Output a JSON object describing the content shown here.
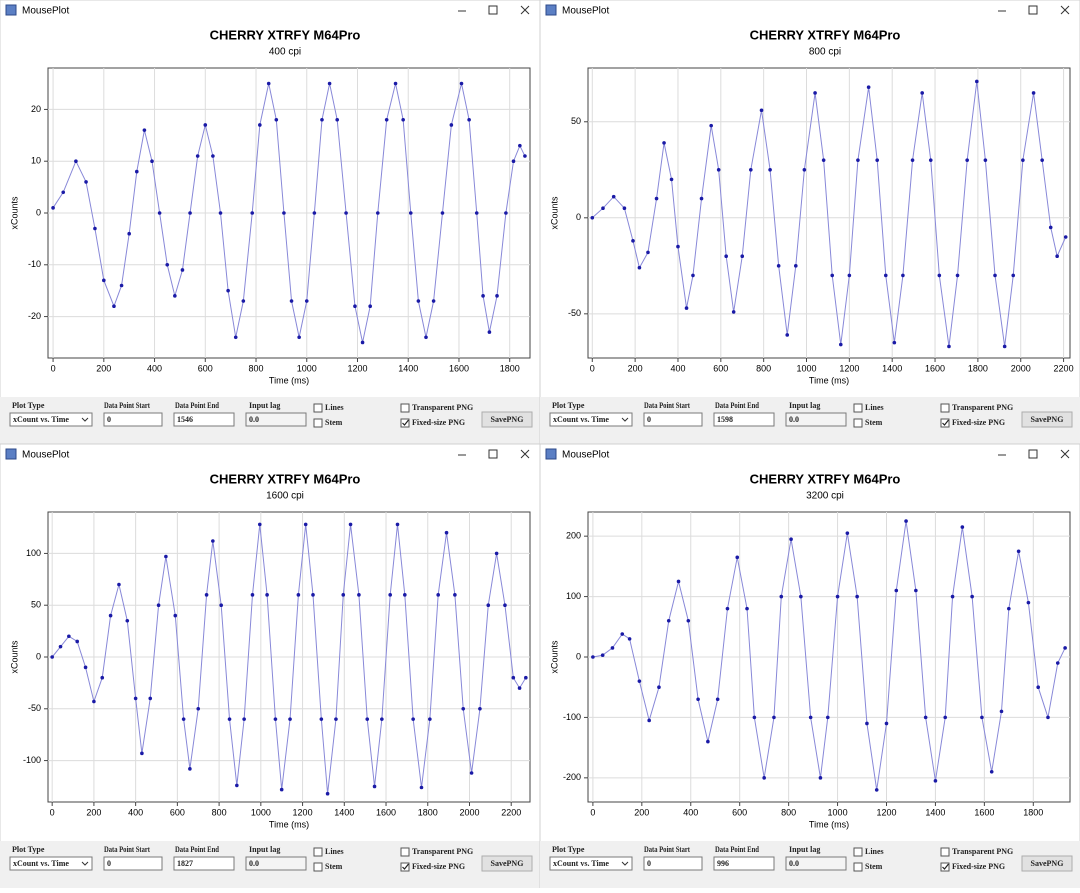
{
  "windows": [
    {
      "title": "MousePlot",
      "controls": {
        "plot_type_label": "Plot Type",
        "plot_type": "xCount vs. Time",
        "start_label": "Data Point Start",
        "start": "0",
        "end_label": "Data Point End",
        "end": "1546",
        "lag_label": "Input lag",
        "lag": "0.0",
        "lines": "Lines",
        "stem": "Stem",
        "transparent": "Transparent PNG",
        "fixed": "Fixed-size PNG",
        "fixed_checked": true,
        "save": "SavePNG"
      }
    },
    {
      "title": "MousePlot",
      "controls": {
        "plot_type_label": "Plot Type",
        "plot_type": "xCount vs. Time",
        "start_label": "Data Point Start",
        "start": "0",
        "end_label": "Data Point End",
        "end": "1598",
        "lag_label": "Input lag",
        "lag": "0.0",
        "lines": "Lines",
        "stem": "Stem",
        "transparent": "Transparent PNG",
        "fixed": "Fixed-size PNG",
        "fixed_checked": true,
        "save": "SavePNG"
      }
    },
    {
      "title": "MousePlot",
      "controls": {
        "plot_type_label": "Plot Type",
        "plot_type": "xCount vs. Time",
        "start_label": "Data Point Start",
        "start": "0",
        "end_label": "Data Point End",
        "end": "1827",
        "lag_label": "Input lag",
        "lag": "0.0",
        "lines": "Lines",
        "stem": "Stem",
        "transparent": "Transparent PNG",
        "fixed": "Fixed-size PNG",
        "fixed_checked": true,
        "save": "SavePNG"
      }
    },
    {
      "title": "MousePlot",
      "controls": {
        "plot_type_label": "Plot Type",
        "plot_type": "xCount vs. Time",
        "start_label": "Data Point Start",
        "start": "0",
        "end_label": "Data Point End",
        "end": "996",
        "lag_label": "Input lag",
        "lag": "0.0",
        "lines": "Lines",
        "stem": "Stem",
        "transparent": "Transparent PNG",
        "fixed": "Fixed-size PNG",
        "fixed_checked": true,
        "save": "SavePNG"
      }
    }
  ],
  "chart_data": [
    {
      "type": "line",
      "title": "CHERRY  XTRFY M64Pro",
      "subtitle": "400 cpi",
      "x_label": "Time (ms)",
      "y_label": "xCounts",
      "color": "#1a1aa6",
      "grid": true,
      "xlim": [
        -20,
        1880
      ],
      "ylim": [
        -28,
        28
      ],
      "xticks": [
        0,
        200,
        400,
        600,
        800,
        1000,
        1200,
        1400,
        1600,
        1800
      ],
      "yticks": [
        -20,
        -10,
        0,
        10,
        20
      ],
      "x": [
        0,
        40,
        90,
        130,
        165,
        200,
        240,
        270,
        300,
        330,
        360,
        390,
        420,
        450,
        480,
        510,
        540,
        570,
        600,
        630,
        660,
        690,
        720,
        750,
        785,
        815,
        850,
        880,
        910,
        940,
        970,
        1000,
        1030,
        1060,
        1090,
        1120,
        1155,
        1190,
        1220,
        1250,
        1280,
        1315,
        1350,
        1380,
        1410,
        1440,
        1470,
        1500,
        1535,
        1570,
        1610,
        1640,
        1670,
        1695,
        1720,
        1750,
        1785,
        1815,
        1840,
        1860
      ],
      "values": [
        1,
        4,
        10,
        6,
        -3,
        -13,
        -18,
        -14,
        -4,
        8,
        16,
        10,
        0,
        -10,
        -16,
        -11,
        0,
        11,
        17,
        11,
        0,
        -15,
        -24,
        -17,
        0,
        17,
        25,
        18,
        0,
        -17,
        -24,
        -17,
        0,
        18,
        25,
        18,
        0,
        -18,
        -25,
        -18,
        0,
        18,
        25,
        18,
        0,
        -17,
        -24,
        -17,
        0,
        17,
        25,
        18,
        0,
        -16,
        -23,
        -16,
        0,
        10,
        13,
        11
      ]
    },
    {
      "type": "line",
      "title": "CHERRY  XTRFY M64Pro",
      "subtitle": "800 cpi",
      "x_label": "Time (ms)",
      "y_label": "xCounts",
      "color": "#1a1aa6",
      "grid": true,
      "xlim": [
        -20,
        2230
      ],
      "ylim": [
        -73,
        78
      ],
      "xticks": [
        0,
        200,
        400,
        600,
        800,
        1000,
        1200,
        1400,
        1600,
        1800,
        2000,
        2200
      ],
      "yticks": [
        -50,
        0,
        50
      ],
      "x": [
        0,
        50,
        100,
        150,
        190,
        220,
        260,
        300,
        335,
        370,
        400,
        440,
        470,
        510,
        555,
        590,
        625,
        660,
        700,
        740,
        790,
        830,
        870,
        910,
        950,
        990,
        1040,
        1080,
        1120,
        1160,
        1200,
        1240,
        1290,
        1330,
        1370,
        1410,
        1450,
        1495,
        1540,
        1580,
        1620,
        1665,
        1705,
        1750,
        1795,
        1835,
        1880,
        1925,
        1965,
        2010,
        2060,
        2100,
        2140,
        2170,
        2210
      ],
      "values": [
        0,
        5,
        11,
        5,
        -12,
        -26,
        -18,
        10,
        39,
        20,
        -15,
        -47,
        -30,
        10,
        48,
        25,
        -20,
        -49,
        -20,
        25,
        56,
        25,
        -25,
        -61,
        -25,
        25,
        65,
        30,
        -30,
        -66,
        -30,
        30,
        68,
        30,
        -30,
        -65,
        -30,
        30,
        65,
        30,
        -30,
        -67,
        -30,
        30,
        71,
        30,
        -30,
        -67,
        -30,
        30,
        65,
        30,
        -5,
        -20,
        -10
      ]
    },
    {
      "type": "line",
      "title": "CHERRY  XTRFY M64Pro",
      "subtitle": "1600 cpi",
      "x_label": "Time (ms)",
      "y_label": "xCounts",
      "color": "#1a1aa6",
      "grid": true,
      "xlim": [
        -20,
        2290
      ],
      "ylim": [
        -140,
        140
      ],
      "xticks": [
        0,
        200,
        400,
        600,
        800,
        1000,
        1200,
        1400,
        1600,
        1800,
        2000,
        2200
      ],
      "yticks": [
        -100,
        -50,
        0,
        50,
        100
      ],
      "x": [
        0,
        40,
        80,
        120,
        160,
        200,
        240,
        280,
        320,
        360,
        400,
        430,
        470,
        510,
        545,
        590,
        630,
        660,
        700,
        740,
        770,
        810,
        850,
        885,
        920,
        960,
        995,
        1030,
        1070,
        1100,
        1140,
        1180,
        1215,
        1250,
        1290,
        1320,
        1360,
        1395,
        1430,
        1470,
        1510,
        1545,
        1580,
        1620,
        1655,
        1690,
        1730,
        1770,
        1810,
        1850,
        1890,
        1930,
        1970,
        2010,
        2050,
        2090,
        2130,
        2170,
        2210,
        2240,
        2270
      ],
      "values": [
        0,
        10,
        20,
        15,
        -10,
        -43,
        -20,
        40,
        70,
        35,
        -40,
        -93,
        -40,
        50,
        97,
        40,
        -60,
        -108,
        -50,
        60,
        112,
        50,
        -60,
        -124,
        -60,
        60,
        128,
        60,
        -60,
        -128,
        -60,
        60,
        128,
        60,
        -60,
        -132,
        -60,
        60,
        128,
        60,
        -60,
        -125,
        -60,
        60,
        128,
        60,
        -60,
        -126,
        -60,
        60,
        120,
        60,
        -50,
        -112,
        -50,
        50,
        100,
        50,
        -20,
        -30,
        -20
      ]
    },
    {
      "type": "line",
      "title": "CHERRY  XTRFY M64Pro",
      "subtitle": "3200 cpi",
      "x_label": "Time (ms)",
      "y_label": "xCounts",
      "color": "#1a1aa6",
      "grid": true,
      "xlim": [
        -20,
        1950
      ],
      "ylim": [
        -240,
        240
      ],
      "xticks": [
        0,
        200,
        400,
        600,
        800,
        1000,
        1200,
        1400,
        1600,
        1800
      ],
      "yticks": [
        -200,
        -100,
        0,
        100,
        200
      ],
      "x": [
        0,
        40,
        80,
        120,
        150,
        190,
        230,
        270,
        310,
        350,
        390,
        430,
        470,
        510,
        550,
        590,
        630,
        660,
        700,
        740,
        770,
        810,
        850,
        890,
        930,
        960,
        1000,
        1040,
        1080,
        1120,
        1160,
        1200,
        1240,
        1280,
        1320,
        1360,
        1400,
        1440,
        1470,
        1510,
        1550,
        1590,
        1630,
        1670,
        1700,
        1740,
        1780,
        1820,
        1860,
        1900,
        1930
      ],
      "values": [
        0,
        3,
        15,
        38,
        30,
        -40,
        -105,
        -50,
        60,
        125,
        60,
        -70,
        -140,
        -70,
        80,
        165,
        80,
        -100,
        -200,
        -100,
        100,
        195,
        100,
        -100,
        -200,
        -100,
        100,
        205,
        100,
        -110,
        -220,
        -110,
        110,
        225,
        110,
        -100,
        -205,
        -100,
        100,
        215,
        100,
        -100,
        -190,
        -90,
        80,
        175,
        90,
        -50,
        -100,
        -10,
        15
      ]
    }
  ]
}
